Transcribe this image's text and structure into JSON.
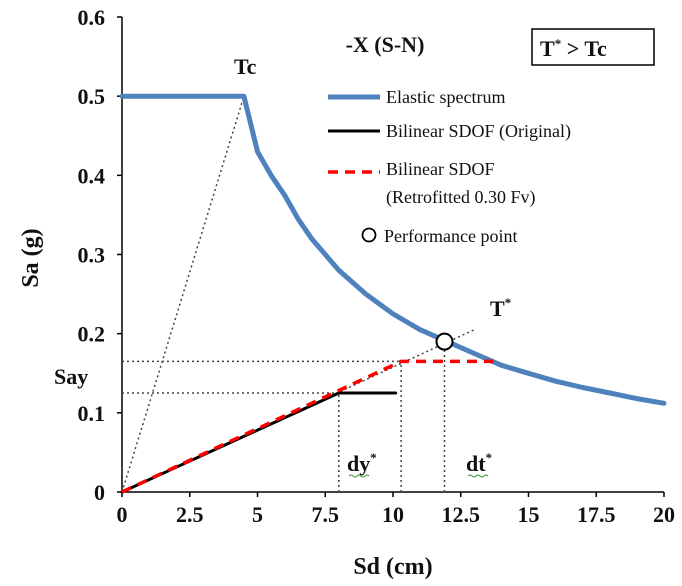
{
  "chart_data": {
    "type": "line",
    "title": "-X (S-N)",
    "xlabel": "Sd (cm)",
    "ylabel": "Sa (g)",
    "xlim": [
      0,
      20
    ],
    "ylim": [
      0,
      0.6
    ],
    "xticks": [
      "0",
      "2.5",
      "5",
      "7.5",
      "10",
      "12.5",
      "15",
      "17.5",
      "20"
    ],
    "yticks": [
      "0",
      "0.1",
      "0.2",
      "0.3",
      "0.4",
      "0.5",
      "0.6"
    ],
    "grid": false,
    "legend_position": "top-right",
    "condition_box": {
      "main": "T",
      "sup": "*",
      "rest": " > Tc"
    },
    "series": [
      {
        "name": "Elastic spectrum",
        "color": "#4f81bd",
        "style": "solid",
        "x": [
          0,
          4.5,
          5.0,
          5.5,
          6.0,
          6.5,
          7.0,
          8.0,
          9.0,
          10.0,
          11.0,
          12.0,
          13.0,
          14.0,
          15.0,
          16.0,
          17.0,
          18.0,
          19.0,
          20.0
        ],
        "y": [
          0.5,
          0.5,
          0.43,
          0.4,
          0.375,
          0.345,
          0.32,
          0.28,
          0.25,
          0.225,
          0.205,
          0.19,
          0.175,
          0.16,
          0.15,
          0.14,
          0.132,
          0.125,
          0.118,
          0.112
        ]
      },
      {
        "name": "Bilinear SDOF (Original)",
        "color": "#000000",
        "style": "solid",
        "x": [
          0,
          8.0,
          10.1
        ],
        "y": [
          0,
          0.125,
          0.125
        ]
      },
      {
        "name_lines": [
          "Bilinear SDOF",
          "(Retrofitted 0.30 Fv)"
        ],
        "color": "#ff0000",
        "style": "dashed",
        "x": [
          0,
          10.3,
          13.7
        ],
        "y": [
          0,
          0.165,
          0.165
        ]
      },
      {
        "name": "Performance point",
        "type": "scatter",
        "marker": "open-circle",
        "x": [
          11.9
        ],
        "y": [
          0.19
        ]
      }
    ],
    "reference_lines": [
      {
        "kind": "dotted",
        "from": [
          0,
          0
        ],
        "to": [
          4.5,
          0.5
        ]
      },
      {
        "kind": "dotted",
        "from": [
          0,
          0
        ],
        "to": [
          13.0,
          0.205
        ]
      },
      {
        "kind": "dotted",
        "from": [
          0,
          0.125
        ],
        "to": [
          8.0,
          0.125
        ]
      },
      {
        "kind": "dotted",
        "from": [
          0,
          0.165
        ],
        "to": [
          10.3,
          0.165
        ]
      },
      {
        "kind": "dotted",
        "from": [
          8.0,
          0
        ],
        "to": [
          8.0,
          0.125
        ]
      },
      {
        "kind": "dotted",
        "from": [
          10.3,
          0
        ],
        "to": [
          10.3,
          0.165
        ]
      },
      {
        "kind": "dotted",
        "from": [
          11.9,
          0
        ],
        "to": [
          11.9,
          0.19
        ]
      }
    ],
    "annotations": {
      "tc": "Tc",
      "tstar": {
        "main": "T",
        "sup": "*"
      },
      "say": "Say",
      "dy": {
        "main": "dy",
        "sup": "*"
      },
      "dt": {
        "main": "dt",
        "sup": "*"
      }
    }
  }
}
